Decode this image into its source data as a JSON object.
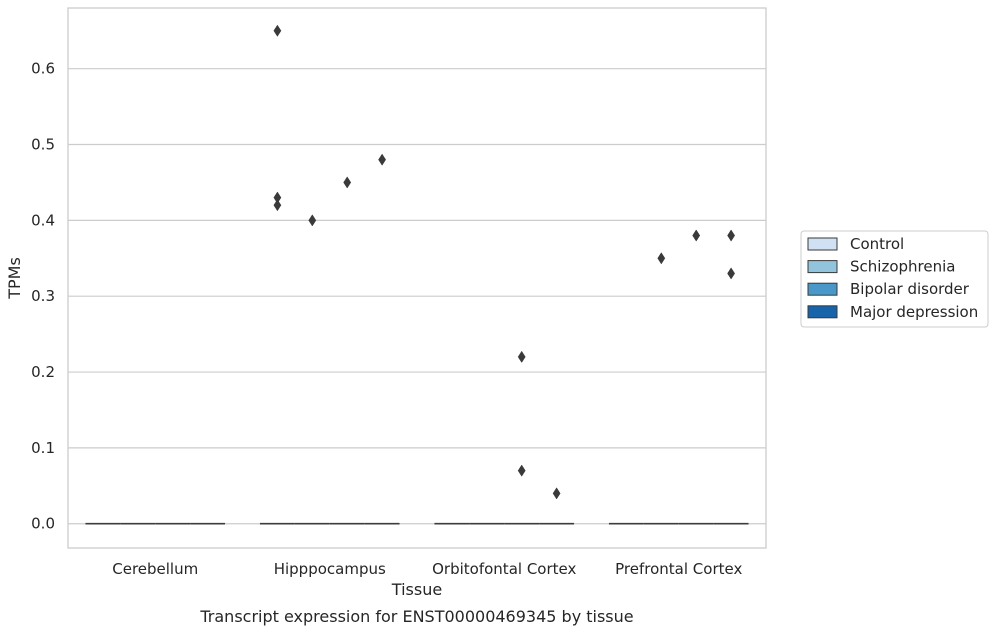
{
  "caption": "Transcript expression for ENST00000469345 by tissue",
  "chart_data": {
    "type": "box",
    "xlabel": "Tissue",
    "ylabel": "TPMs",
    "categories": [
      "Cerebellum",
      "Hipppocampus",
      "Orbitofontal Cortex",
      "Prefrontal Cortex"
    ],
    "ylim": [
      -0.032,
      0.68
    ],
    "yticks": [
      "0.0",
      "0.1",
      "0.2",
      "0.3",
      "0.4",
      "0.5",
      "0.6"
    ],
    "grid": true,
    "legend_position": "right",
    "series": [
      {
        "name": "Control",
        "color": "#cfe1f2"
      },
      {
        "name": "Schizophrenia",
        "color": "#93c4de"
      },
      {
        "name": "Bipolar disorder",
        "color": "#4a98c9"
      },
      {
        "name": "Major depression",
        "color": "#1764ab"
      }
    ],
    "medians": [
      [
        0.0,
        0.0,
        0.0,
        0.0
      ],
      [
        0.0,
        0.0,
        0.0,
        0.0
      ],
      [
        0.0,
        0.0,
        0.0,
        0.0
      ],
      [
        0.0,
        0.0,
        0.0,
        0.0
      ]
    ],
    "outliers": [
      {
        "category": "Hipppocampus",
        "series": "Control",
        "values": [
          0.65,
          0.43,
          0.42
        ]
      },
      {
        "category": "Hipppocampus",
        "series": "Schizophrenia",
        "values": [
          0.4
        ]
      },
      {
        "category": "Hipppocampus",
        "series": "Bipolar disorder",
        "values": [
          0.45
        ]
      },
      {
        "category": "Hipppocampus",
        "series": "Major depression",
        "values": [
          0.48
        ]
      },
      {
        "category": "Orbitofontal Cortex",
        "series": "Bipolar disorder",
        "values": [
          0.22,
          0.07
        ]
      },
      {
        "category": "Orbitofontal Cortex",
        "series": "Major depression",
        "values": [
          0.04
        ]
      },
      {
        "category": "Prefrontal Cortex",
        "series": "Schizophrenia",
        "values": [
          0.35
        ]
      },
      {
        "category": "Prefrontal Cortex",
        "series": "Bipolar disorder",
        "values": [
          0.38
        ]
      },
      {
        "category": "Prefrontal Cortex",
        "series": "Major depression",
        "values": [
          0.38,
          0.33
        ]
      }
    ]
  }
}
